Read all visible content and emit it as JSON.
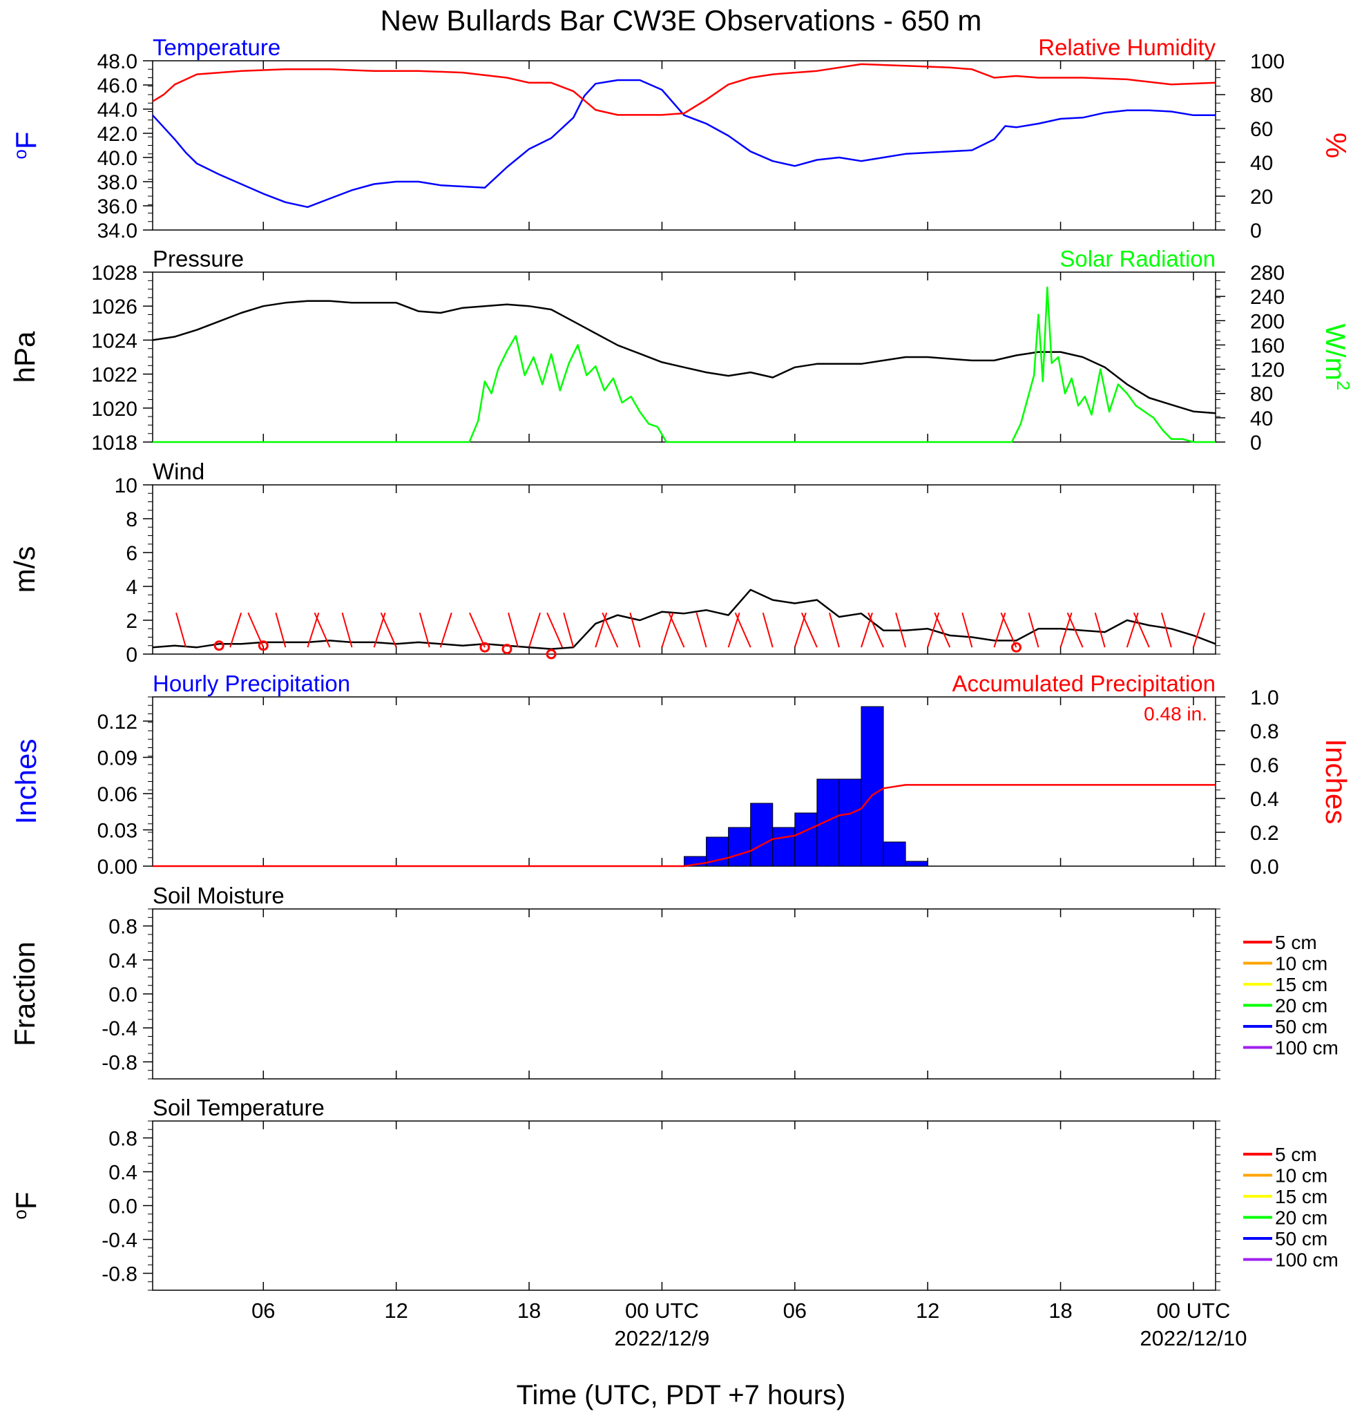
{
  "title": "New Bullards Bar CW3E Observations - 650 m",
  "xaxis": {
    "label": "Time (UTC, PDT +7 hours)",
    "range_hours": [
      0,
      48
    ],
    "tick_hours": [
      5,
      11,
      17,
      23,
      29,
      35,
      41,
      47
    ],
    "tick_labels": [
      "06",
      "12",
      "18",
      "00 UTC",
      "06",
      "12",
      "18",
      "00 UTC"
    ],
    "date_labels": [
      {
        "hour": 23,
        "text": "2022/12/9"
      },
      {
        "hour": 47,
        "text": "2022/12/10"
      }
    ]
  },
  "legend_depths": [
    {
      "label": "5 cm",
      "color": "#ff0000"
    },
    {
      "label": "10 cm",
      "color": "#ffa500"
    },
    {
      "label": "15 cm",
      "color": "#ffff00"
    },
    {
      "label": "20 cm",
      "color": "#00ff00"
    },
    {
      "label": "50 cm",
      "color": "#0000ff"
    },
    {
      "label": "100 cm",
      "color": "#a020f0"
    }
  ],
  "chart_data": [
    {
      "type": "line",
      "id": "temp_rh",
      "panel_title_left": "Temperature",
      "panel_title_right": "Relative Humidity",
      "ylabel_left": "oF",
      "ylabel_right": "%",
      "ylim_left": [
        34,
        48
      ],
      "ylim_right": [
        0,
        100
      ],
      "yticks_left": [
        "34.0",
        "36.0",
        "38.0",
        "40.0",
        "42.0",
        "44.0",
        "46.0",
        "48.0"
      ],
      "yticks_right": [
        "0",
        "20",
        "40",
        "60",
        "80",
        "100"
      ],
      "series": [
        {
          "name": "Temperature",
          "axis": "left",
          "color": "#0000ff",
          "x": [
            0,
            1,
            1.5,
            2,
            3,
            4,
            5,
            6,
            6.5,
            7,
            8,
            9,
            10,
            11,
            12,
            13,
            14,
            15,
            16,
            17,
            18,
            19,
            19.5,
            20,
            21,
            22,
            23,
            24,
            25,
            26,
            27,
            28,
            29,
            30,
            31,
            32,
            33,
            34,
            35,
            36,
            37,
            38,
            38.5,
            39,
            40,
            41,
            42,
            43,
            44,
            45,
            46,
            47,
            48
          ],
          "y": [
            43.5,
            41.5,
            40.4,
            39.5,
            38.6,
            37.8,
            37.0,
            36.3,
            36.1,
            35.9,
            36.6,
            37.3,
            37.8,
            38.0,
            38.0,
            37.7,
            37.6,
            37.5,
            39.2,
            40.7,
            41.6,
            43.3,
            45.1,
            46.1,
            46.4,
            46.4,
            45.6,
            43.5,
            42.8,
            41.8,
            40.5,
            39.7,
            39.3,
            39.8,
            40.0,
            39.7,
            40.0,
            40.3,
            40.4,
            40.5,
            40.6,
            41.5,
            42.6,
            42.5,
            42.8,
            43.2,
            43.3,
            43.7,
            43.9,
            43.9,
            43.8,
            43.5,
            43.5
          ]
        },
        {
          "name": "Relative Humidity",
          "axis": "right",
          "color": "#ff0000",
          "x": [
            0,
            0.5,
            1,
            2,
            4,
            6,
            8,
            10,
            12,
            14,
            16,
            17,
            18,
            19,
            20,
            21,
            22,
            23,
            24,
            25,
            26,
            27,
            28,
            30,
            32,
            34,
            36,
            37,
            38,
            39,
            40,
            42,
            44,
            46,
            48
          ],
          "y": [
            76,
            80,
            86,
            92,
            94,
            95,
            95,
            94,
            94,
            93,
            90,
            87,
            87,
            82,
            71,
            68,
            68,
            68,
            69,
            77,
            86,
            90,
            92,
            94,
            98,
            97,
            96,
            95,
            90,
            91,
            90,
            90,
            89,
            86,
            87
          ]
        }
      ]
    },
    {
      "type": "line",
      "id": "pressure_solar",
      "panel_title_left": "Pressure",
      "panel_title_right": "Solar Radiation",
      "ylabel_left": "hPa",
      "ylabel_right": "W/m2",
      "ylim_left": [
        1018,
        1028
      ],
      "ylim_right": [
        0,
        280
      ],
      "yticks_left": [
        "1018",
        "1020",
        "1022",
        "1024",
        "1026",
        "1028"
      ],
      "yticks_right": [
        "0",
        "40",
        "80",
        "120",
        "160",
        "200",
        "240",
        "280"
      ],
      "series": [
        {
          "name": "Pressure",
          "axis": "left",
          "color": "#000000",
          "x": [
            0,
            1,
            2,
            3,
            4,
            5,
            6,
            7,
            8,
            9,
            10,
            11,
            12,
            13,
            14,
            15,
            16,
            17,
            18,
            19,
            20,
            21,
            22,
            23,
            24,
            25,
            26,
            27,
            28,
            29,
            30,
            31,
            32,
            33,
            34,
            35,
            36,
            37,
            38,
            39,
            40,
            41,
            42,
            43,
            44,
            45,
            46,
            47,
            48
          ],
          "y": [
            1024.0,
            1024.2,
            1024.6,
            1025.1,
            1025.6,
            1026.0,
            1026.2,
            1026.3,
            1026.3,
            1026.2,
            1026.2,
            1026.2,
            1025.7,
            1025.6,
            1025.9,
            1026.0,
            1026.1,
            1026.0,
            1025.8,
            1025.1,
            1024.4,
            1023.7,
            1023.2,
            1022.7,
            1022.4,
            1022.1,
            1021.9,
            1022.1,
            1021.8,
            1022.4,
            1022.6,
            1022.6,
            1022.6,
            1022.8,
            1023.0,
            1023.0,
            1022.9,
            1022.8,
            1022.8,
            1023.1,
            1023.3,
            1023.3,
            1023.0,
            1022.4,
            1021.4,
            1020.6,
            1020.2,
            1019.8,
            1019.7
          ]
        },
        {
          "name": "Solar Radiation",
          "axis": "right",
          "color": "#00ff00",
          "x": [
            0,
            14.3,
            14.7,
            15.0,
            15.3,
            15.6,
            16.0,
            16.4,
            16.8,
            17.2,
            17.6,
            18.0,
            18.4,
            18.8,
            19.2,
            19.6,
            20.0,
            20.4,
            20.8,
            21.2,
            21.6,
            22.0,
            22.4,
            22.8,
            23.2,
            38.8,
            39.2,
            39.5,
            39.8,
            40.0,
            40.2,
            40.4,
            40.6,
            40.9,
            41.2,
            41.5,
            41.8,
            42.1,
            42.4,
            42.8,
            43.2,
            43.6,
            44.0,
            44.4,
            44.8,
            45.2,
            45.6,
            46.0,
            46.5,
            47.0,
            48.0
          ],
          "y": [
            0,
            0,
            35,
            100,
            80,
            120,
            150,
            175,
            110,
            140,
            95,
            145,
            85,
            130,
            160,
            110,
            125,
            85,
            105,
            65,
            75,
            50,
            30,
            25,
            0,
            0,
            30,
            70,
            110,
            210,
            100,
            255,
            130,
            140,
            80,
            105,
            60,
            75,
            45,
            120,
            50,
            95,
            80,
            60,
            50,
            40,
            20,
            5,
            5,
            0,
            0
          ]
        }
      ]
    },
    {
      "type": "line",
      "id": "wind",
      "panel_title_left": "Wind",
      "ylabel_left": "m/s",
      "ylim_left": [
        0,
        10
      ],
      "yticks_left": [
        "0",
        "2",
        "4",
        "6",
        "8",
        "10"
      ],
      "series": [
        {
          "name": "Wind",
          "axis": "left",
          "color": "#000000",
          "x": [
            0,
            1,
            2,
            3,
            4,
            5,
            6,
            7,
            8,
            9,
            10,
            11,
            12,
            13,
            14,
            15,
            16,
            17,
            18,
            19,
            20,
            21,
            22,
            23,
            24,
            25,
            26,
            27,
            28,
            29,
            30,
            31,
            32,
            33,
            34,
            35,
            36,
            37,
            38,
            39,
            40,
            41,
            42,
            43,
            44,
            45,
            46,
            47,
            48
          ],
          "y": [
            0.4,
            0.5,
            0.4,
            0.6,
            0.6,
            0.7,
            0.7,
            0.7,
            0.8,
            0.7,
            0.7,
            0.6,
            0.7,
            0.6,
            0.5,
            0.6,
            0.5,
            0.4,
            0.3,
            0.4,
            1.8,
            2.3,
            2.0,
            2.5,
            2.4,
            2.6,
            2.3,
            3.8,
            3.2,
            3.0,
            3.2,
            2.2,
            2.4,
            1.4,
            1.4,
            1.5,
            1.1,
            1.0,
            0.8,
            0.8,
            1.5,
            1.5,
            1.4,
            1.3,
            2.0,
            1.7,
            1.5,
            1.1,
            0.6
          ]
        }
      ],
      "direction_barbs": {
        "color": "#ff0000",
        "x": [
          1.5,
          3.5,
          5.0,
          6.0,
          7.0,
          8.0,
          9.0,
          10.0,
          11.0,
          12.5,
          13.0,
          15.0,
          16.5,
          17.0,
          18.5,
          19.0,
          20.0,
          21.0,
          22.0,
          23.0,
          24.0,
          25.0,
          26.0,
          27.0,
          28.0,
          29.0,
          30.0,
          31.0,
          32.0,
          33.0,
          34.0,
          35.0,
          36.0,
          37.0,
          38.0,
          39.0,
          40.0,
          41.0,
          42.0,
          43.0,
          44.0,
          45.0,
          46.0,
          47.0
        ]
      },
      "calm_markers": {
        "color": "#ff0000",
        "x": [
          3.0,
          5.0,
          15.0,
          16.0,
          18.0,
          39.0
        ],
        "y": [
          0.5,
          0.5,
          0.4,
          0.3,
          0.0,
          0.4
        ]
      }
    },
    {
      "type": "bar",
      "id": "precip",
      "panel_title_left": "Hourly Precipitation",
      "panel_title_right": "Accumulated Precipitation",
      "annotation": "0.48 in.",
      "ylabel_left": "Inches",
      "ylabel_right": "Inches",
      "ylim_left": [
        0,
        0.14
      ],
      "ylim_right": [
        0,
        1.0
      ],
      "yticks_left": [
        "0.00",
        "0.03",
        "0.06",
        "0.09",
        "0.12"
      ],
      "yticks_right": [
        "0.0",
        "0.2",
        "0.4",
        "0.6",
        "0.8",
        "1.0"
      ],
      "bars": {
        "color": "#0000ff",
        "start_hours": [
          24,
          25,
          26,
          27,
          28,
          29,
          30,
          31,
          32,
          33,
          34
        ],
        "values": [
          0.008,
          0.024,
          0.032,
          0.052,
          0.032,
          0.044,
          0.072,
          0.072,
          0.132,
          0.02,
          0.004
        ]
      },
      "series": [
        {
          "name": "Accumulated Precipitation",
          "axis": "right",
          "color": "#ff0000",
          "x": [
            0,
            24,
            25,
            26,
            27,
            28,
            29,
            30,
            31,
            31.5,
            32,
            32.5,
            33,
            34,
            35,
            48
          ],
          "y": [
            0,
            0,
            0.02,
            0.05,
            0.09,
            0.16,
            0.18,
            0.24,
            0.3,
            0.31,
            0.34,
            0.42,
            0.46,
            0.48,
            0.48,
            0.48
          ]
        }
      ]
    },
    {
      "type": "line",
      "id": "soil_moisture",
      "panel_title_left": "Soil Moisture",
      "ylabel_left": "Fraction",
      "ylim_left": [
        -1,
        1
      ],
      "yticks_left": [
        "-0.8",
        "-0.4",
        "0.0",
        "0.4",
        "0.8"
      ],
      "series": []
    },
    {
      "type": "line",
      "id": "soil_temp",
      "panel_title_left": "Soil Temperature",
      "ylabel_left": "oF",
      "ylim_left": [
        -1,
        1
      ],
      "yticks_left": [
        "-0.8",
        "-0.4",
        "0.0",
        "0.4",
        "0.8"
      ],
      "series": []
    }
  ]
}
